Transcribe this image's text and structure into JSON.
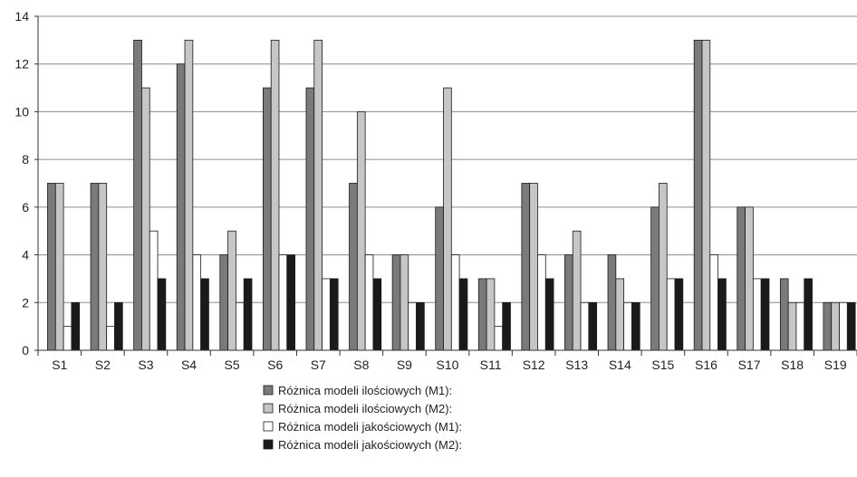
{
  "chart_data": {
    "type": "bar",
    "categories": [
      "S1",
      "S2",
      "S3",
      "S4",
      "S5",
      "S6",
      "S7",
      "S8",
      "S9",
      "S10",
      "S11",
      "S12",
      "S13",
      "S14",
      "S15",
      "S16",
      "S17",
      "S18",
      "S19"
    ],
    "series": [
      {
        "name": "Różnica modeli ilościowych (M1):",
        "color": "#7a7a7a",
        "values": [
          7,
          7,
          13,
          12,
          4,
          11,
          11,
          7,
          4,
          6,
          3,
          7,
          4,
          4,
          6,
          13,
          6,
          3,
          2
        ]
      },
      {
        "name": "Różnica modeli ilościowych (M2):",
        "color": "#c6c6c6",
        "values": [
          7,
          7,
          11,
          13,
          5,
          13,
          13,
          10,
          4,
          11,
          3,
          7,
          5,
          3,
          7,
          13,
          6,
          2,
          2
        ]
      },
      {
        "name": "Różnica modeli jakościowych (M1):",
        "color": "#ffffff",
        "values": [
          1,
          1,
          5,
          4,
          2,
          4,
          3,
          4,
          2,
          4,
          1,
          4,
          2,
          2,
          3,
          4,
          3,
          2,
          2
        ]
      },
      {
        "name": "Różnica modeli jakościowych (M2):",
        "color": "#1a1a1a",
        "values": [
          2,
          2,
          3,
          3,
          3,
          4,
          3,
          3,
          2,
          3,
          2,
          3,
          2,
          2,
          3,
          3,
          3,
          3,
          2
        ]
      }
    ],
    "ylim": [
      0,
      14
    ],
    "yticks": [
      "0",
      "2",
      "4",
      "6",
      "8",
      "10",
      "12",
      "14"
    ],
    "grid": true,
    "legend_position": "bottom",
    "title": "",
    "xlabel": "",
    "ylabel": ""
  }
}
